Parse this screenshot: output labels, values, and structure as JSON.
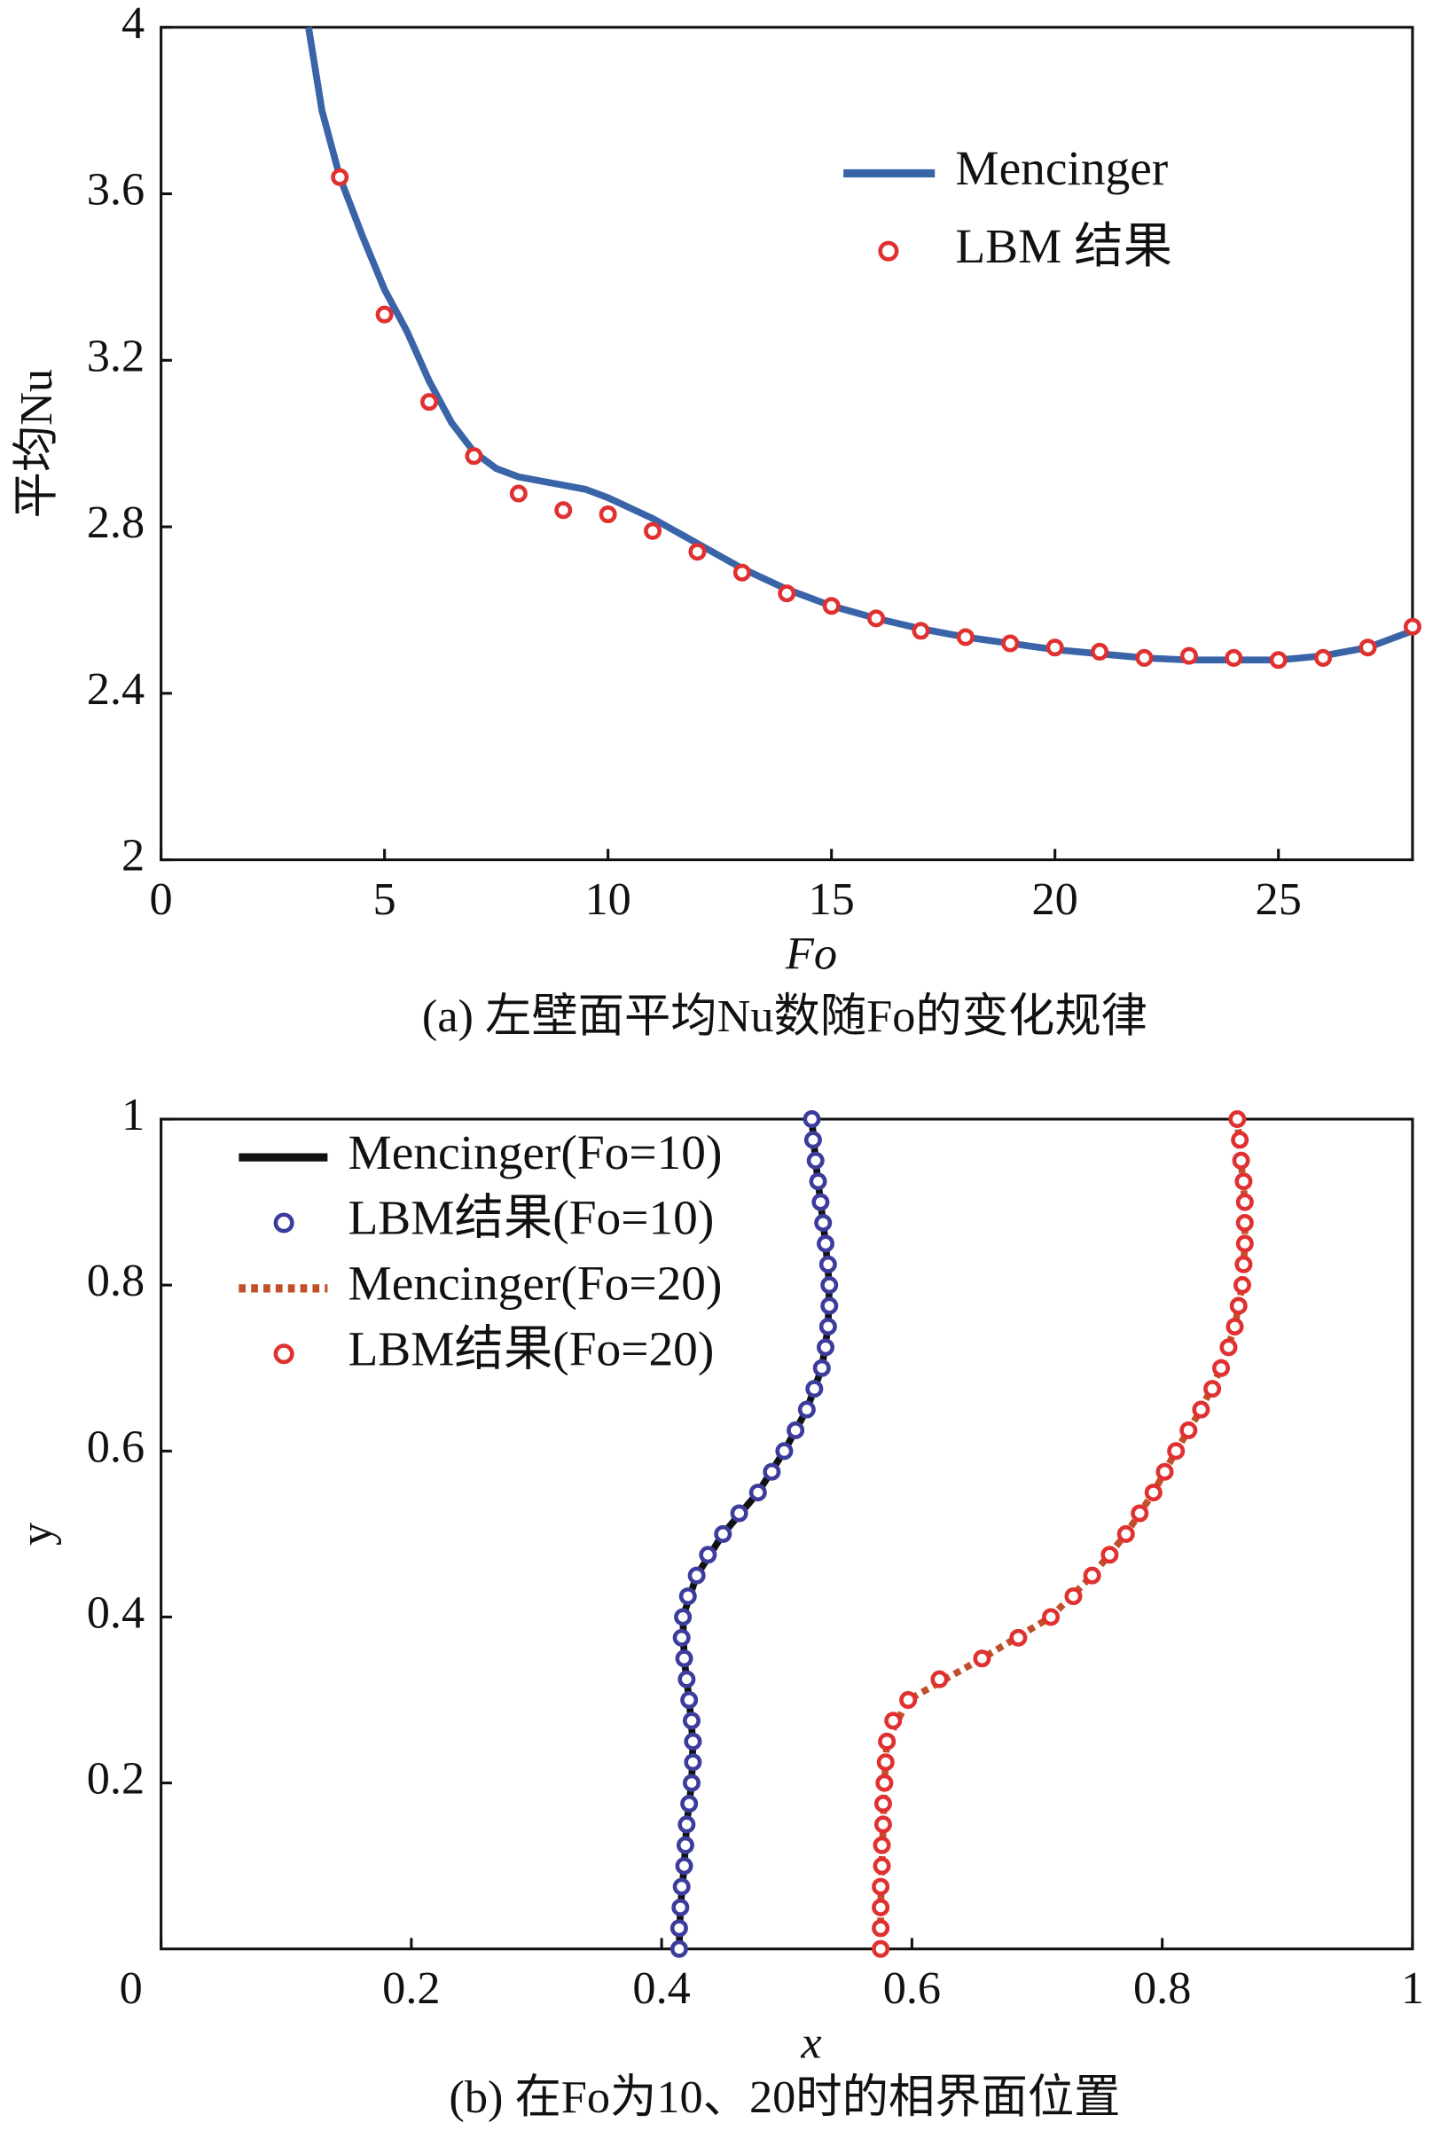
{
  "chart_data": [
    {
      "type": "line",
      "caption": "(a) 左壁面平均Nu数随Fo的变化规律",
      "x_label": "Fo",
      "y_label": "平均Nu",
      "xlim": [
        0,
        28
      ],
      "xticks": [
        0,
        5,
        10,
        15,
        20,
        25
      ],
      "ylim": [
        2,
        4
      ],
      "yticks": [
        2,
        2.4,
        2.8,
        3.2,
        3.6,
        4
      ],
      "legend": "upper right",
      "series": [
        {
          "name": "Mencinger",
          "type": "line",
          "color": "#3a64a8",
          "x": [
            3.3,
            3.6,
            4,
            4.5,
            5,
            5.5,
            6,
            6.5,
            7,
            7.5,
            8,
            9,
            9.5,
            10,
            11,
            12,
            13,
            14,
            15,
            16,
            17,
            18,
            19,
            20,
            21,
            22,
            23,
            24,
            25,
            26,
            27,
            28
          ],
          "values": [
            4.0,
            3.8,
            3.64,
            3.5,
            3.37,
            3.27,
            3.15,
            3.05,
            2.98,
            2.94,
            2.92,
            2.9,
            2.89,
            2.87,
            2.82,
            2.76,
            2.7,
            2.65,
            2.61,
            2.58,
            2.555,
            2.535,
            2.52,
            2.505,
            2.495,
            2.485,
            2.48,
            2.48,
            2.48,
            2.49,
            2.51,
            2.55
          ]
        },
        {
          "name": "LBM 结果",
          "type": "scatter",
          "color": "#e03030",
          "x": [
            4,
            5,
            6,
            7,
            8,
            9,
            10,
            11,
            12,
            13,
            14,
            15,
            16,
            17,
            18,
            19,
            20,
            21,
            22,
            23,
            24,
            25,
            26,
            27,
            28
          ],
          "values": [
            3.64,
            3.31,
            3.1,
            2.97,
            2.88,
            2.84,
            2.83,
            2.79,
            2.74,
            2.69,
            2.64,
            2.61,
            2.58,
            2.55,
            2.535,
            2.52,
            2.51,
            2.5,
            2.485,
            2.49,
            2.485,
            2.48,
            2.485,
            2.51,
            2.56
          ]
        }
      ]
    },
    {
      "type": "line",
      "caption": "(b) 在Fo为10、20时的相界面位置",
      "x_label": "x",
      "y_label": "y",
      "xlim": [
        0,
        1
      ],
      "xticks": [
        0,
        0.2,
        0.4,
        0.6,
        0.8,
        1
      ],
      "ylim": [
        0,
        1
      ],
      "yticks": [
        0.2,
        0.4,
        0.6,
        0.8,
        1
      ],
      "legend": "upper left",
      "series": [
        {
          "name": "Mencinger(Fo=10)",
          "type": "line",
          "color": "#111111",
          "x": [
            0.414,
            0.415,
            0.418,
            0.42,
            0.424,
            0.425,
            0.422,
            0.418,
            0.417,
            0.428,
            0.449,
            0.477,
            0.498,
            0.516,
            0.528,
            0.533,
            0.534,
            0.531,
            0.527,
            0.523,
            0.52
          ],
          "values": [
            0,
            0.05,
            0.1,
            0.15,
            0.2,
            0.25,
            0.3,
            0.35,
            0.4,
            0.45,
            0.5,
            0.55,
            0.6,
            0.65,
            0.7,
            0.75,
            0.8,
            0.85,
            0.9,
            0.95,
            1
          ]
        },
        {
          "name": "LBM结果(Fo=10)",
          "type": "scatter",
          "color": "#3c3c9c",
          "x": [
            0.414,
            0.414,
            0.415,
            0.416,
            0.418,
            0.419,
            0.42,
            0.422,
            0.424,
            0.425,
            0.425,
            0.424,
            0.422,
            0.42,
            0.418,
            0.416,
            0.417,
            0.421,
            0.428,
            0.437,
            0.449,
            0.462,
            0.477,
            0.488,
            0.498,
            0.507,
            0.516,
            0.522,
            0.528,
            0.531,
            0.533,
            0.534,
            0.534,
            0.533,
            0.531,
            0.529,
            0.527,
            0.525,
            0.523,
            0.521,
            0.52
          ],
          "values": [
            0,
            0.025,
            0.05,
            0.075,
            0.1,
            0.125,
            0.15,
            0.175,
            0.2,
            0.225,
            0.25,
            0.275,
            0.3,
            0.325,
            0.35,
            0.375,
            0.4,
            0.425,
            0.45,
            0.475,
            0.5,
            0.525,
            0.55,
            0.575,
            0.6,
            0.625,
            0.65,
            0.675,
            0.7,
            0.725,
            0.75,
            0.775,
            0.8,
            0.825,
            0.85,
            0.875,
            0.9,
            0.925,
            0.95,
            0.975,
            1
          ]
        },
        {
          "name": "Mencinger(Fo=20)",
          "type": "line",
          "dashed": true,
          "color": "#c0502a",
          "x": [
            0.575,
            0.575,
            0.576,
            0.577,
            0.578,
            0.58,
            0.597,
            0.656,
            0.711,
            0.744,
            0.771,
            0.793,
            0.811,
            0.831,
            0.847,
            0.858,
            0.864,
            0.866,
            0.866,
            0.863,
            0.86
          ],
          "values": [
            0,
            0.05,
            0.1,
            0.15,
            0.2,
            0.25,
            0.3,
            0.35,
            0.4,
            0.45,
            0.5,
            0.55,
            0.6,
            0.65,
            0.7,
            0.75,
            0.8,
            0.85,
            0.9,
            0.95,
            1
          ]
        },
        {
          "name": "LBM结果(Fo=20)",
          "type": "scatter",
          "color": "#e03030",
          "x": [
            0.575,
            0.575,
            0.575,
            0.575,
            0.576,
            0.576,
            0.577,
            0.577,
            0.578,
            0.579,
            0.58,
            0.585,
            0.597,
            0.622,
            0.656,
            0.685,
            0.711,
            0.729,
            0.744,
            0.758,
            0.771,
            0.782,
            0.793,
            0.802,
            0.811,
            0.821,
            0.831,
            0.84,
            0.847,
            0.853,
            0.858,
            0.861,
            0.864,
            0.865,
            0.866,
            0.866,
            0.866,
            0.865,
            0.863,
            0.862,
            0.86
          ],
          "values": [
            0,
            0.025,
            0.05,
            0.075,
            0.1,
            0.125,
            0.15,
            0.175,
            0.2,
            0.225,
            0.25,
            0.275,
            0.3,
            0.325,
            0.35,
            0.375,
            0.4,
            0.425,
            0.45,
            0.475,
            0.5,
            0.525,
            0.55,
            0.575,
            0.6,
            0.625,
            0.65,
            0.675,
            0.7,
            0.725,
            0.75,
            0.775,
            0.8,
            0.825,
            0.85,
            0.875,
            0.9,
            0.925,
            0.95,
            0.975,
            1
          ]
        }
      ]
    }
  ]
}
